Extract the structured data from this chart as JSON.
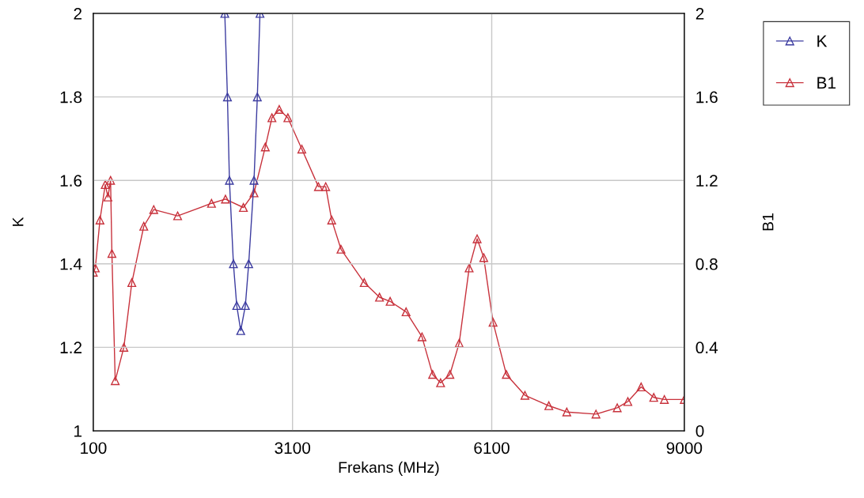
{
  "chart_data": {
    "type": "line",
    "xlabel": "Frekans (MHz)",
    "ylabel": "K",
    "y2label": "B1",
    "xlim": [
      100,
      9000
    ],
    "xticks": [
      100,
      3100,
      6100,
      9000
    ],
    "ylim": [
      1,
      2
    ],
    "yticks": [
      1,
      1.2,
      1.4,
      1.6,
      1.8,
      2
    ],
    "y2lim": [
      0,
      2
    ],
    "y2ticks": [
      0,
      0.4,
      0.8,
      1.2,
      1.6,
      2
    ],
    "grid": true,
    "legend": "top right",
    "marker": "triangle",
    "line_style": "solid",
    "series": [
      {
        "name": "K",
        "color": "#3c3ca0",
        "x": [
          2080,
          2120,
          2150,
          2210,
          2260,
          2320,
          2390,
          2440,
          2520,
          2570,
          2610
        ],
        "values": [
          2.0,
          1.8,
          1.6,
          1.4,
          1.3,
          1.24,
          1.3,
          1.4,
          1.6,
          1.8,
          2.0
        ]
      },
      {
        "name": "B1",
        "color": "#c8323c",
        "axis": "y2",
        "x": [
          100,
          130,
          200,
          280,
          320,
          360,
          380,
          430,
          560,
          680,
          860,
          1010,
          1370,
          1880,
          2090,
          2360,
          2520,
          2690,
          2790,
          2900,
          3030,
          3240,
          3490,
          3600,
          3690,
          3830,
          4180,
          4410,
          4570,
          4810,
          5050,
          5210,
          5330,
          5470,
          5610,
          5760,
          5880,
          5980,
          6120,
          6320,
          6600,
          6960,
          7230,
          7670,
          7990,
          8150,
          8350,
          8540,
          8700,
          9000
        ],
        "values": [
          0.76,
          0.78,
          1.01,
          1.18,
          1.12,
          1.2,
          0.85,
          0.24,
          0.4,
          0.71,
          0.98,
          1.06,
          1.03,
          1.09,
          1.11,
          1.07,
          1.14,
          1.36,
          1.5,
          1.54,
          1.5,
          1.35,
          1.17,
          1.17,
          1.01,
          0.87,
          0.71,
          0.64,
          0.62,
          0.57,
          0.45,
          0.27,
          0.23,
          0.27,
          0.42,
          0.78,
          0.92,
          0.83,
          0.52,
          0.27,
          0.17,
          0.12,
          0.09,
          0.08,
          0.11,
          0.14,
          0.21,
          0.16,
          0.15,
          0.15
        ]
      }
    ]
  }
}
